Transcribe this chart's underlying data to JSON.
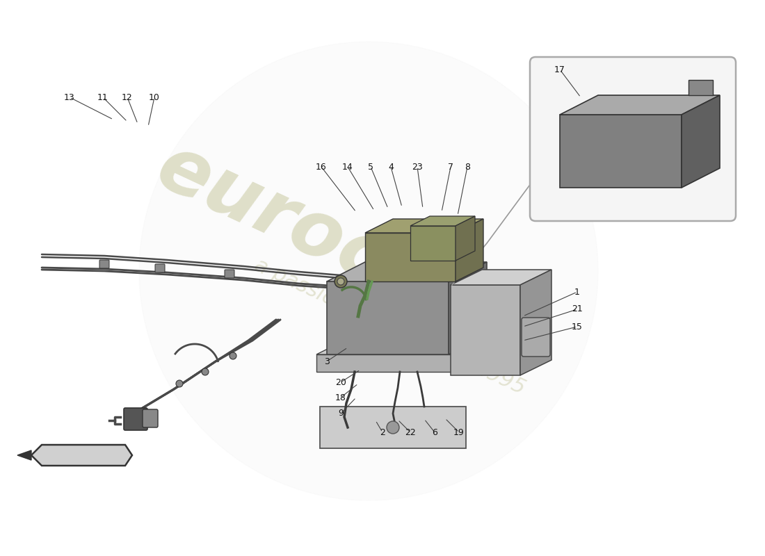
{
  "bg_color": "#ffffff",
  "wire_color": "#4a4a4a",
  "wire_color2": "#3a3a3a",
  "connector_dark": "#555555",
  "connector_mid": "#888888",
  "label_color": "#111111",
  "battery_face_front": "#909090",
  "battery_face_top": "#b0b0b0",
  "battery_face_right": "#707070",
  "battery_face_side": "#808080",
  "module_olive": "#8a8a60",
  "module_olive_top": "#a0a070",
  "module_olive_right": "#707050",
  "module_green": "#7a9060",
  "tray_color": "#b0b0b0",
  "tray_top": "#cccccc",
  "tray_right": "#909090",
  "plate_color": "#cccccc",
  "panel_color": "#b5b5b5",
  "panel_top": "#d0d0d0",
  "panel_right": "#959595",
  "detail_box_bg": "#f5f5f5",
  "detail_box_edge": "#aaaaaa",
  "watermark_eurocars": "#c8c8a0",
  "watermark_passion": "#d0d0b0",
  "circle_bg": "#eeeeee",
  "chevron_color": "#333333",
  "chevron_fill": "#d0d0d0"
}
